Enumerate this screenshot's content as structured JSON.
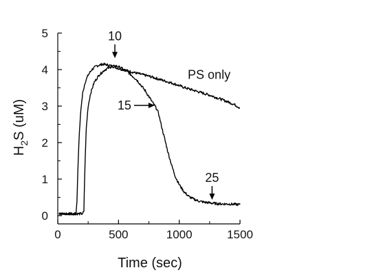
{
  "chart_data": {
    "type": "line",
    "xlabel": "Time (sec)",
    "ylabel_main": "H",
    "ylabel_sub": "2",
    "ylabel_rest": "S (uM)",
    "xlim": [
      0,
      1500
    ],
    "ylim": [
      0,
      5
    ],
    "x_ticks": [
      0,
      500,
      1000,
      1500
    ],
    "y_ticks": [
      0,
      1,
      2,
      3,
      4,
      5
    ],
    "x_tick_labels": [
      "0",
      "500",
      "1000",
      "1500"
    ],
    "y_tick_labels": [
      "0",
      "1",
      "2",
      "3",
      "4",
      "5"
    ],
    "grid": false,
    "series": [
      {
        "name": "PS only",
        "color": "#000000",
        "x": [
          10,
          150,
          158,
          165,
          175,
          190,
          205,
          225,
          250,
          280,
          320,
          370,
          420,
          460,
          500,
          560,
          650,
          750,
          850,
          950,
          1050,
          1150,
          1250,
          1350,
          1450,
          1500
        ],
        "y": [
          0.05,
          0.05,
          0.4,
          1.2,
          2.1,
          2.9,
          3.35,
          3.65,
          3.85,
          4.0,
          4.1,
          4.15,
          4.12,
          4.08,
          4.03,
          3.98,
          3.9,
          3.82,
          3.72,
          3.62,
          3.5,
          3.4,
          3.3,
          3.18,
          3.05,
          2.95
        ]
      },
      {
        "name": "",
        "color": "#000000",
        "x": [
          10,
          200,
          215,
          218,
          225,
          235,
          250,
          270,
          300,
          340,
          390,
          440,
          480,
          520,
          580,
          650,
          720,
          780,
          810,
          830,
          850,
          880,
          910,
          940,
          970,
          1000,
          1040,
          1080,
          1120,
          1160,
          1200,
          1250,
          1300,
          1350,
          1400,
          1450,
          1500
        ],
        "y": [
          0.05,
          0.05,
          0.1,
          0.6,
          1.5,
          2.4,
          3.0,
          3.35,
          3.65,
          3.85,
          4.0,
          4.08,
          4.1,
          4.05,
          3.92,
          3.72,
          3.42,
          3.1,
          2.95,
          2.8,
          2.5,
          2.1,
          1.7,
          1.35,
          1.05,
          0.85,
          0.65,
          0.52,
          0.45,
          0.4,
          0.37,
          0.35,
          0.33,
          0.32,
          0.32,
          0.31,
          0.3
        ]
      }
    ],
    "annotations": [
      {
        "label": "10",
        "x": 470,
        "y": 4.2,
        "direction": "down"
      },
      {
        "label": "15",
        "x": 820,
        "y": 3.0,
        "direction": "right"
      },
      {
        "label": "25",
        "x": 1270,
        "y": 0.32,
        "direction": "down"
      },
      {
        "label": "PS only",
        "x": 1070,
        "y": 3.75,
        "direction": "none"
      }
    ]
  }
}
